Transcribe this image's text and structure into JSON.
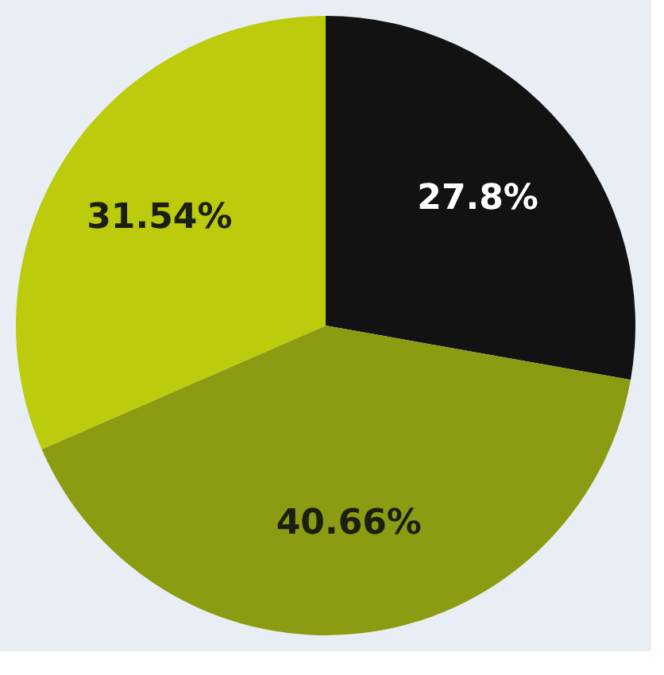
{
  "chart_data": {
    "type": "pie",
    "categories": [
      null,
      null,
      null
    ],
    "values": [
      27.8,
      40.66,
      31.54
    ],
    "value_labels": [
      "27.8%",
      "40.66%",
      "31.54%"
    ],
    "colors": [
      "#121212",
      "#8c9c12",
      "#bccb0c"
    ],
    "legend": false
  }
}
